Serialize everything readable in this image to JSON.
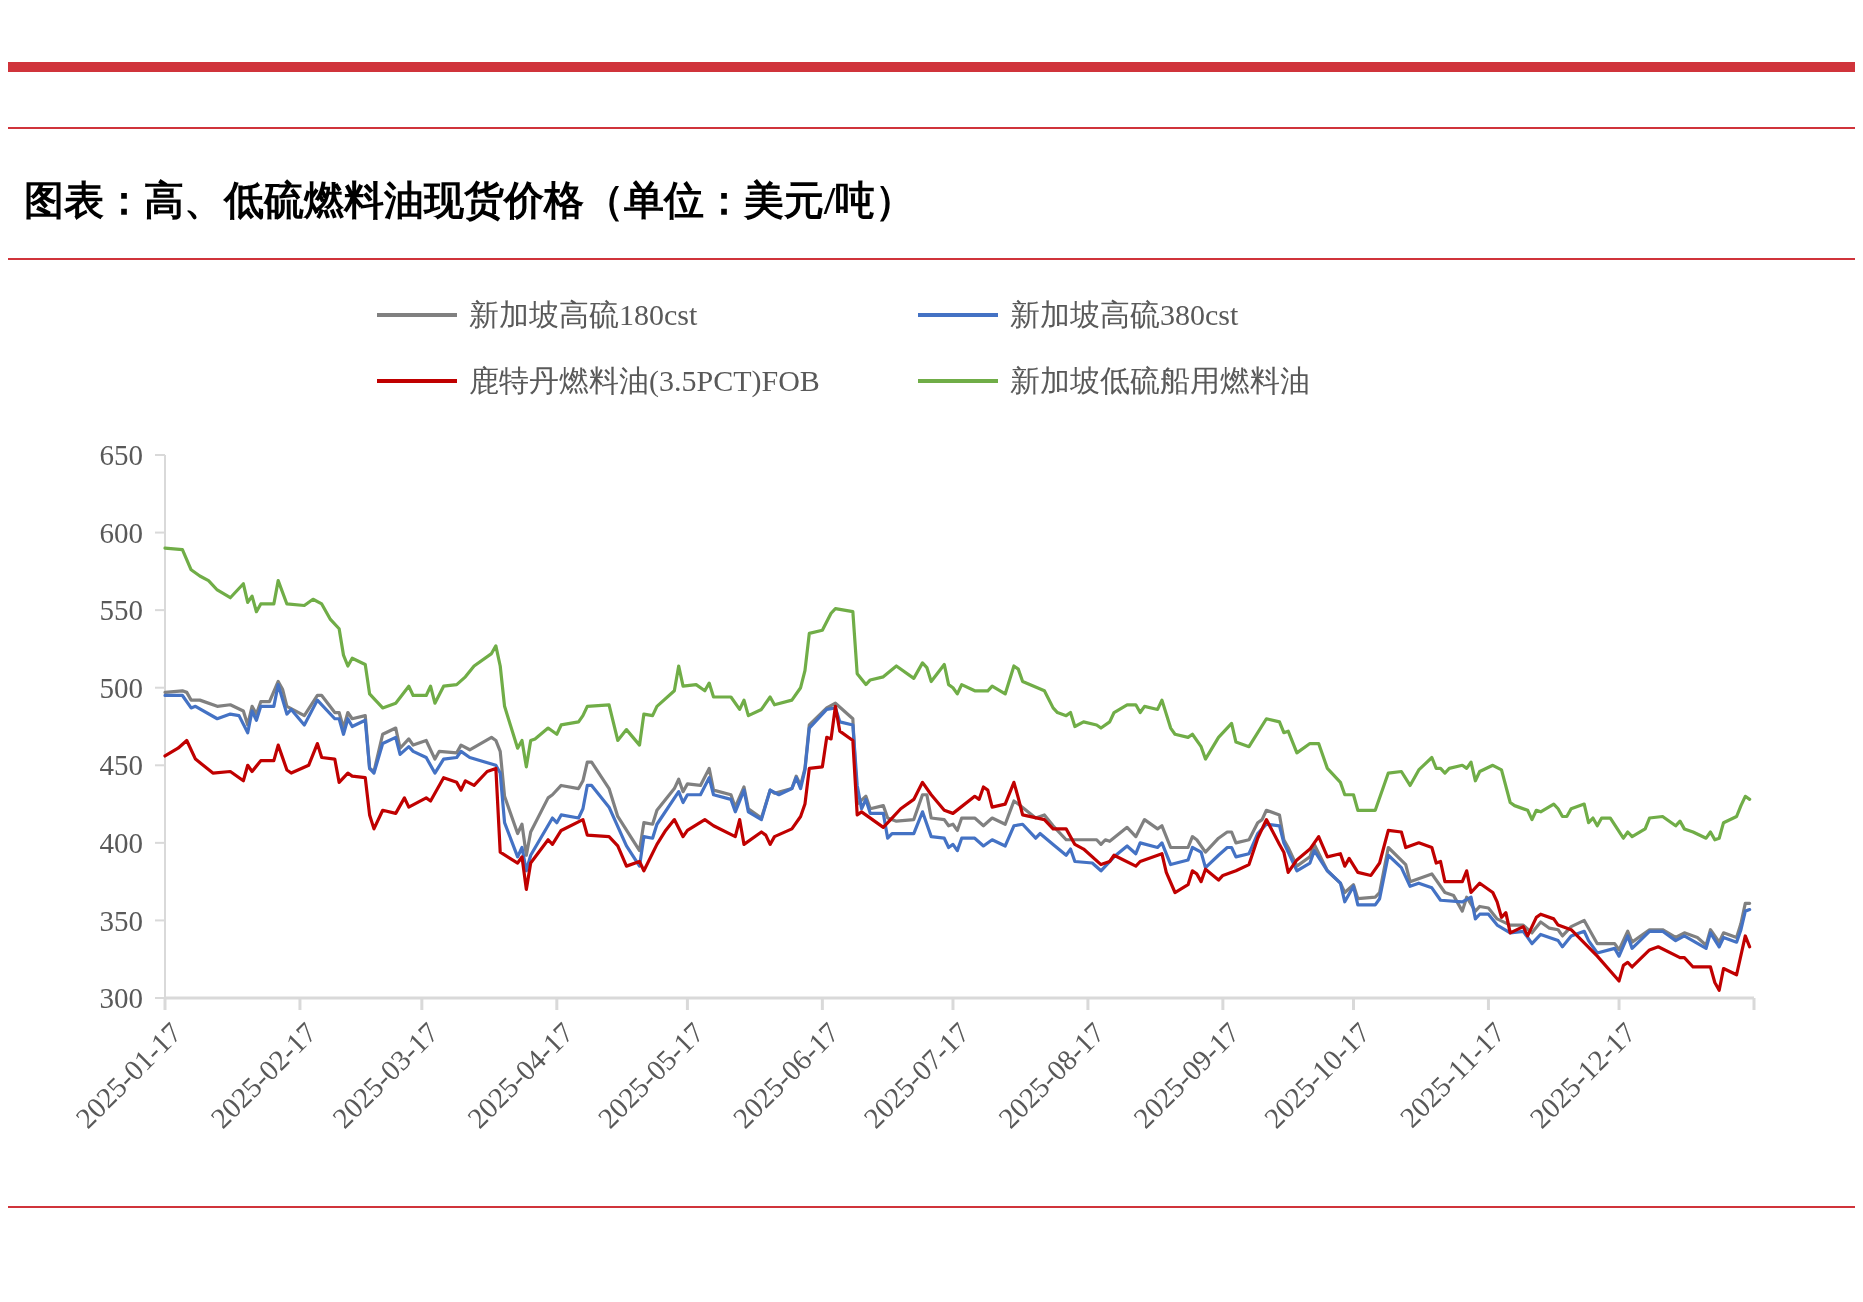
{
  "chart_data": {
    "type": "line",
    "title": "图表：高、低硫燃料油现货价格（单位：美元/吨）",
    "xlim": [
      "2025-01-17",
      "2026-01-17"
    ],
    "xticks": [
      "2025-01-17",
      "2025-02-17",
      "2025-03-17",
      "2025-04-17",
      "2025-05-17",
      "2025-06-17",
      "2025-07-17",
      "2025-08-17",
      "2025-09-17",
      "2025-10-17",
      "2025-11-17",
      "2025-12-17"
    ],
    "ylim": [
      300,
      650
    ],
    "yticks": [
      300,
      350,
      400,
      450,
      500,
      550,
      600,
      650
    ],
    "grid": false,
    "legend": "top",
    "series": [
      {
        "name": "新加坡高硫180cst",
        "color": "#808080",
        "x": [
          "2025-01-17",
          "2025-01-21",
          "2025-01-22",
          "2025-01-23",
          "2025-01-25",
          "2025-01-29",
          "2025-02-01",
          "2025-02-04",
          "2025-02-05",
          "2025-02-06",
          "2025-02-07",
          "2025-02-08",
          "2025-02-10",
          "2025-02-12",
          "2025-02-13",
          "2025-02-14",
          "2025-02-18",
          "2025-02-21",
          "2025-02-22",
          "2025-02-25",
          "2025-02-26",
          "2025-02-27",
          "2025-02-28",
          "2025-03-01",
          "2025-03-04",
          "2025-03-05",
          "2025-03-06",
          "2025-03-08",
          "2025-03-11",
          "2025-03-12",
          "2025-03-14",
          "2025-03-15",
          "2025-03-18",
          "2025-03-20",
          "2025-03-21",
          "2025-03-25",
          "2025-03-26",
          "2025-03-28",
          "2025-04-02",
          "2025-04-03",
          "2025-04-04",
          "2025-04-05",
          "2025-04-08",
          "2025-04-09",
          "2025-04-10",
          "2025-04-11",
          "2025-04-15",
          "2025-04-16",
          "2025-04-18",
          "2025-04-22",
          "2025-04-23",
          "2025-04-24",
          "2025-04-25",
          "2025-04-29",
          "2025-05-01",
          "2025-05-06",
          "2025-05-07",
          "2025-05-09",
          "2025-05-10",
          "2025-05-14",
          "2025-05-15",
          "2025-05-16",
          "2025-05-17",
          "2025-05-20",
          "2025-05-22",
          "2025-05-23",
          "2025-05-27",
          "2025-05-28",
          "2025-05-30",
          "2025-05-31",
          "2025-06-03",
          "2025-06-05",
          "2025-06-06",
          "2025-06-10",
          "2025-06-11",
          "2025-06-12",
          "2025-06-13",
          "2025-06-14",
          "2025-06-18",
          "2025-06-20",
          "2025-06-24",
          "2025-06-25",
          "2025-06-27",
          "2025-06-28",
          "2025-07-01",
          "2025-07-02",
          "2025-07-04",
          "2025-07-08",
          "2025-07-10",
          "2025-07-11",
          "2025-07-12",
          "2025-07-15",
          "2025-07-16",
          "2025-07-17",
          "2025-07-18",
          "2025-07-19",
          "2025-07-22",
          "2025-07-24",
          "2025-07-26",
          "2025-07-29",
          "2025-07-31",
          "2025-08-01",
          "2025-08-05",
          "2025-08-07",
          "2025-08-09",
          "2025-08-12",
          "2025-08-15",
          "2025-08-19",
          "2025-08-20",
          "2025-08-21",
          "2025-08-22",
          "2025-08-26",
          "2025-08-28",
          "2025-08-30",
          "2025-09-02",
          "2025-09-03",
          "2025-09-05",
          "2025-09-09",
          "2025-09-10",
          "2025-09-11",
          "2025-09-13",
          "2025-09-16",
          "2025-09-18",
          "2025-09-19",
          "2025-09-20",
          "2025-09-23",
          "2025-09-25",
          "2025-09-26",
          "2025-09-27",
          "2025-09-30",
          "2025-10-01",
          "2025-10-02",
          "2025-10-04",
          "2025-10-07",
          "2025-10-08",
          "2025-10-11",
          "2025-10-14",
          "2025-10-15",
          "2025-10-17",
          "2025-10-18",
          "2025-10-22",
          "2025-10-23",
          "2025-10-25",
          "2025-10-29",
          "2025-10-30",
          "2025-11-04",
          "2025-11-07",
          "2025-11-09",
          "2025-11-11",
          "2025-11-12",
          "2025-11-14",
          "2025-11-15",
          "2025-11-17",
          "2025-11-19",
          "2025-11-22",
          "2025-11-25",
          "2025-11-27",
          "2025-11-29",
          "2025-12-01",
          "2025-12-03",
          "2025-12-04",
          "2025-12-06",
          "2025-12-09",
          "2025-12-11",
          "2025-12-12",
          "2025-12-16",
          "2025-12-17",
          "2025-12-19",
          "2025-12-20",
          "2025-12-24",
          "2025-12-27",
          "2025-12-30",
          "2026-01-01",
          "2026-01-04",
          "2026-01-06",
          "2026-01-07",
          "2026-01-09",
          "2026-01-10",
          "2026-01-13",
          "2026-01-14",
          "2026-01-15",
          "2026-01-16"
        ],
        "values": [
          497,
          498,
          497,
          492,
          492,
          488,
          489,
          485,
          476,
          488,
          483,
          491,
          491,
          504,
          499,
          488,
          482,
          495,
          495,
          484,
          484,
          474,
          484,
          480,
          482,
          448,
          446,
          470,
          474,
          461,
          467,
          463,
          466,
          454,
          459,
          458,
          463,
          460,
          468,
          466,
          459,
          430,
          406,
          412,
          392,
          407,
          429,
          431,
          437,
          435,
          440,
          452,
          452,
          435,
          417,
          395,
          413,
          412,
          421,
          435,
          441,
          433,
          438,
          437,
          448,
          434,
          431,
          423,
          436,
          422,
          416,
          434,
          432,
          435,
          443,
          437,
          448,
          476,
          487,
          490,
          480,
          425,
          430,
          422,
          424,
          416,
          414,
          415,
          431,
          431,
          416,
          415,
          411,
          412,
          408,
          416,
          416,
          411,
          416,
          412,
          427,
          425,
          416,
          418,
          411,
          402,
          402,
          402,
          399,
          402,
          401,
          410,
          404,
          415,
          409,
          411,
          397,
          397,
          404,
          402,
          394,
          403,
          407,
          407,
          400,
          402,
          413,
          415,
          421,
          418,
          402,
          397,
          385,
          391,
          399,
          382,
          374,
          368,
          373,
          364,
          365,
          368,
          397,
          386,
          375,
          380,
          368,
          366,
          356,
          365,
          356,
          359,
          358,
          351,
          347,
          347,
          342,
          349,
          345,
          344,
          340,
          346,
          350,
          340,
          335,
          335,
          331,
          343,
          336,
          344,
          344,
          339,
          342,
          339,
          334,
          344,
          336,
          342,
          339,
          348,
          361,
          361
        ]
      },
      {
        "name": "新加坡高硫380cst",
        "color": "#4472c4",
        "x": [
          "2025-01-17",
          "2025-01-21",
          "2025-01-23",
          "2025-01-24",
          "2025-01-29",
          "2025-02-01",
          "2025-02-03",
          "2025-02-05",
          "2025-02-06",
          "2025-02-07",
          "2025-02-08",
          "2025-02-11",
          "2025-02-12",
          "2025-02-14",
          "2025-02-15",
          "2025-02-18",
          "2025-02-21",
          "2025-02-25",
          "2025-02-26",
          "2025-02-27",
          "2025-02-28",
          "2025-03-01",
          "2025-03-04",
          "2025-03-05",
          "2025-03-06",
          "2025-03-08",
          "2025-03-11",
          "2025-03-12",
          "2025-03-14",
          "2025-03-15",
          "2025-03-18",
          "2025-03-20",
          "2025-03-22",
          "2025-03-25",
          "2025-03-26",
          "2025-03-28",
          "2025-04-03",
          "2025-04-04",
          "2025-04-05",
          "2025-04-08",
          "2025-04-09",
          "2025-04-10",
          "2025-04-11",
          "2025-04-16",
          "2025-04-17",
          "2025-04-18",
          "2025-04-22",
          "2025-04-23",
          "2025-04-24",
          "2025-04-25",
          "2025-04-29",
          "2025-05-03",
          "2025-05-06",
          "2025-05-07",
          "2025-05-09",
          "2025-05-10",
          "2025-05-15",
          "2025-05-16",
          "2025-05-17",
          "2025-05-20",
          "2025-05-22",
          "2025-05-23",
          "2025-05-27",
          "2025-05-28",
          "2025-05-30",
          "2025-05-31",
          "2025-06-03",
          "2025-06-05",
          "2025-06-07",
          "2025-06-10",
          "2025-06-11",
          "2025-06-12",
          "2025-06-13",
          "2025-06-14",
          "2025-06-18",
          "2025-06-20",
          "2025-06-21",
          "2025-06-24",
          "2025-06-25",
          "2025-06-26",
          "2025-06-27",
          "2025-06-28",
          "2025-07-01",
          "2025-07-02",
          "2025-07-03",
          "2025-07-08",
          "2025-07-10",
          "2025-07-12",
          "2025-07-15",
          "2025-07-16",
          "2025-07-17",
          "2025-07-18",
          "2025-07-19",
          "2025-07-22",
          "2025-07-24",
          "2025-07-26",
          "2025-07-29",
          "2025-07-31",
          "2025-08-02",
          "2025-08-05",
          "2025-08-06",
          "2025-08-09",
          "2025-08-12",
          "2025-08-13",
          "2025-08-14",
          "2025-08-18",
          "2025-08-20",
          "2025-08-23",
          "2025-08-26",
          "2025-08-28",
          "2025-08-29",
          "2025-09-02",
          "2025-09-03",
          "2025-09-05",
          "2025-09-09",
          "2025-09-10",
          "2025-09-12",
          "2025-09-13",
          "2025-09-16",
          "2025-09-18",
          "2025-09-19",
          "2025-09-20",
          "2025-09-23",
          "2025-09-25",
          "2025-09-27",
          "2025-09-30",
          "2025-10-01",
          "2025-10-02",
          "2025-10-04",
          "2025-10-07",
          "2025-10-08",
          "2025-10-11",
          "2025-10-14",
          "2025-10-15",
          "2025-10-17",
          "2025-10-18",
          "2025-10-22",
          "2025-10-23",
          "2025-10-25",
          "2025-10-28",
          "2025-10-30",
          "2025-11-01",
          "2025-11-04",
          "2025-11-06",
          "2025-11-11",
          "2025-11-13",
          "2025-11-14",
          "2025-11-15",
          "2025-11-17",
          "2025-11-19",
          "2025-11-22",
          "2025-11-25",
          "2025-11-27",
          "2025-11-29",
          "2025-12-03",
          "2025-12-04",
          "2025-12-06",
          "2025-12-09",
          "2025-12-10",
          "2025-12-12",
          "2025-12-16",
          "2025-12-17",
          "2025-12-19",
          "2025-12-20",
          "2025-12-24",
          "2025-12-27",
          "2025-12-30",
          "2026-01-01",
          "2026-01-06",
          "2026-01-07",
          "2026-01-09",
          "2026-01-10",
          "2026-01-13",
          "2026-01-14",
          "2026-01-15",
          "2026-01-16"
        ],
        "values": [
          495,
          495,
          487,
          488,
          480,
          483,
          482,
          471,
          485,
          479,
          488,
          488,
          502,
          483,
          486,
          476,
          492,
          480,
          480,
          470,
          480,
          475,
          479,
          448,
          445,
          464,
          468,
          457,
          462,
          459,
          455,
          445,
          454,
          455,
          459,
          455,
          450,
          445,
          413,
          391,
          397,
          382,
          392,
          416,
          413,
          418,
          416,
          422,
          437,
          437,
          423,
          398,
          385,
          404,
          403,
          412,
          433,
          426,
          431,
          431,
          442,
          431,
          428,
          420,
          434,
          420,
          415,
          434,
          431,
          435,
          442,
          435,
          447,
          474,
          486,
          487,
          478,
          476,
          437,
          422,
          428,
          419,
          419,
          403,
          406,
          406,
          420,
          404,
          403,
          397,
          399,
          395,
          403,
          403,
          398,
          402,
          398,
          411,
          412,
          403,
          406,
          399,
          392,
          396,
          388,
          387,
          382,
          391,
          398,
          393,
          400,
          397,
          400,
          386,
          389,
          397,
          394,
          384,
          392,
          397,
          397,
          391,
          393,
          406,
          412,
          411,
          400,
          394,
          382,
          387,
          395,
          382,
          374,
          362,
          372,
          360,
          360,
          364,
          392,
          384,
          372,
          374,
          371,
          363,
          362,
          365,
          351,
          354,
          354,
          347,
          342,
          343,
          335,
          341,
          337,
          333,
          340,
          343,
          337,
          329,
          332,
          327,
          340,
          332,
          343,
          343,
          337,
          340,
          332,
          342,
          333,
          339,
          336,
          344,
          356,
          357
        ]
      },
      {
        "name": "鹿特丹燃料油(3.5PCT)FOB",
        "color": "#c00000",
        "x": [
          "2025-01-17",
          "2025-01-20",
          "2025-01-22",
          "2025-01-24",
          "2025-01-28",
          "2025-02-01",
          "2025-02-04",
          "2025-02-05",
          "2025-02-06",
          "2025-02-08",
          "2025-02-11",
          "2025-02-12",
          "2025-02-14",
          "2025-02-15",
          "2025-02-19",
          "2025-02-21",
          "2025-02-22",
          "2025-02-25",
          "2025-02-26",
          "2025-02-28",
          "2025-03-01",
          "2025-03-04",
          "2025-03-05",
          "2025-03-06",
          "2025-03-08",
          "2025-03-11",
          "2025-03-13",
          "2025-03-14",
          "2025-03-18",
          "2025-03-19",
          "2025-03-22",
          "2025-03-25",
          "2025-03-26",
          "2025-03-27",
          "2025-03-29",
          "2025-04-01",
          "2025-04-03",
          "2025-04-04",
          "2025-04-08",
          "2025-04-09",
          "2025-04-10",
          "2025-04-11",
          "2025-04-15",
          "2025-04-16",
          "2025-04-18",
          "2025-04-23",
          "2025-04-24",
          "2025-04-29",
          "2025-05-01",
          "2025-05-03",
          "2025-05-06",
          "2025-05-07",
          "2025-05-10",
          "2025-05-12",
          "2025-05-14",
          "2025-05-16",
          "2025-05-17",
          "2025-05-21",
          "2025-05-23",
          "2025-05-28",
          "2025-05-29",
          "2025-05-30",
          "2025-06-03",
          "2025-06-04",
          "2025-06-05",
          "2025-06-06",
          "2025-06-10",
          "2025-06-12",
          "2025-06-13",
          "2025-06-14",
          "2025-06-17",
          "2025-06-18",
          "2025-06-19",
          "2025-06-20",
          "2025-06-21",
          "2025-06-24",
          "2025-06-25",
          "2025-06-26",
          "2025-07-01",
          "2025-07-03",
          "2025-07-05",
          "2025-07-08",
          "2025-07-10",
          "2025-07-12",
          "2025-07-15",
          "2025-07-17",
          "2025-07-22",
          "2025-07-23",
          "2025-07-24",
          "2025-07-25",
          "2025-07-26",
          "2025-07-29",
          "2025-07-31",
          "2025-08-01",
          "2025-08-02",
          "2025-08-07",
          "2025-08-09",
          "2025-08-12",
          "2025-08-14",
          "2025-08-16",
          "2025-08-20",
          "2025-08-22",
          "2025-08-23",
          "2025-08-28",
          "2025-08-29",
          "2025-09-03",
          "2025-09-04",
          "2025-09-06",
          "2025-09-09",
          "2025-09-10",
          "2025-09-11",
          "2025-09-12",
          "2025-09-13",
          "2025-09-16",
          "2025-09-17",
          "2025-09-20",
          "2025-09-23",
          "2025-09-25",
          "2025-09-27",
          "2025-09-30",
          "2025-10-01",
          "2025-10-02",
          "2025-10-04",
          "2025-10-07",
          "2025-10-09",
          "2025-10-11",
          "2025-10-14",
          "2025-10-15",
          "2025-10-16",
          "2025-10-18",
          "2025-10-21",
          "2025-10-23",
          "2025-10-25",
          "2025-10-28",
          "2025-10-29",
          "2025-11-01",
          "2025-11-04",
          "2025-11-05",
          "2025-11-06",
          "2025-11-07",
          "2025-11-11",
          "2025-11-12",
          "2025-11-13",
          "2025-11-15",
          "2025-11-18",
          "2025-11-19",
          "2025-11-20",
          "2025-11-21",
          "2025-11-22",
          "2025-11-25",
          "2025-11-26",
          "2025-11-28",
          "2025-11-29",
          "2025-12-02",
          "2025-12-03",
          "2025-12-06",
          "2025-12-12",
          "2025-12-17",
          "2025-12-18",
          "2025-12-19",
          "2025-12-20",
          "2025-12-24",
          "2025-12-26",
          "2025-12-31",
          "2026-01-01",
          "2026-01-03",
          "2026-01-07",
          "2026-01-08",
          "2026-01-09",
          "2026-01-10",
          "2026-01-13",
          "2026-01-15",
          "2026-01-16"
        ],
        "values": [
          456,
          461,
          466,
          454,
          445,
          446,
          440,
          450,
          446,
          453,
          453,
          463,
          447,
          445,
          450,
          464,
          455,
          454,
          439,
          445,
          443,
          442,
          418,
          409,
          421,
          419,
          429,
          423,
          429,
          427,
          442,
          439,
          434,
          440,
          437,
          446,
          448,
          394,
          387,
          391,
          370,
          387,
          402,
          399,
          408,
          415,
          405,
          404,
          398,
          385,
          388,
          382,
          399,
          408,
          415,
          404,
          408,
          415,
          411,
          404,
          415,
          399,
          407,
          405,
          399,
          404,
          409,
          417,
          425,
          448,
          449,
          468,
          467,
          488,
          472,
          466,
          418,
          420,
          410,
          416,
          422,
          428,
          439,
          431,
          421,
          419,
          430,
          428,
          436,
          434,
          423,
          425,
          439,
          429,
          418,
          415,
          409,
          409,
          399,
          396,
          386,
          388,
          392,
          385,
          388,
          393,
          381,
          368,
          373,
          382,
          380,
          375,
          383,
          376,
          379,
          382,
          386,
          403,
          415,
          399,
          394,
          381,
          389,
          396,
          404,
          391,
          393,
          385,
          390,
          381,
          379,
          387,
          408,
          407,
          397,
          400,
          397,
          387,
          388,
          375,
          375,
          382,
          368,
          374,
          368,
          362,
          352,
          355,
          342,
          346,
          340,
          352,
          354,
          351,
          347,
          344,
          327,
          311,
          321,
          323,
          320,
          331,
          333,
          326,
          326,
          320,
          320,
          310,
          305,
          319,
          315,
          340,
          333
        ]
      },
      {
        "name": "新加坡低硫船用燃料油",
        "color": "#70ad47",
        "x": [
          "2025-01-17",
          "2025-01-21",
          "2025-01-23",
          "2025-01-25",
          "2025-01-27",
          "2025-01-29",
          "2025-02-01",
          "2025-02-04",
          "2025-02-05",
          "2025-02-06",
          "2025-02-07",
          "2025-02-08",
          "2025-02-11",
          "2025-02-12",
          "2025-02-14",
          "2025-02-18",
          "2025-02-20",
          "2025-02-22",
          "2025-02-24",
          "2025-02-26",
          "2025-02-27",
          "2025-02-28",
          "2025-03-01",
          "2025-03-04",
          "2025-03-05",
          "2025-03-06",
          "2025-03-08",
          "2025-03-11",
          "2025-03-14",
          "2025-03-15",
          "2025-03-18",
          "2025-03-19",
          "2025-03-20",
          "2025-03-22",
          "2025-03-25",
          "2025-03-27",
          "2025-03-29",
          "2025-04-02",
          "2025-04-03",
          "2025-04-04",
          "2025-04-05",
          "2025-04-08",
          "2025-04-09",
          "2025-04-10",
          "2025-04-11",
          "2025-04-12",
          "2025-04-15",
          "2025-04-17",
          "2025-04-18",
          "2025-04-22",
          "2025-04-23",
          "2025-04-24",
          "2025-04-29",
          "2025-05-01",
          "2025-05-03",
          "2025-05-06",
          "2025-05-07",
          "2025-05-09",
          "2025-05-10",
          "2025-05-14",
          "2025-05-15",
          "2025-05-16",
          "2025-05-19",
          "2025-05-21",
          "2025-05-22",
          "2025-05-23",
          "2025-05-27",
          "2025-05-29",
          "2025-05-30",
          "2025-05-31",
          "2025-06-03",
          "2025-06-05",
          "2025-06-06",
          "2025-06-10",
          "2025-06-12",
          "2025-06-13",
          "2025-06-14",
          "2025-06-17",
          "2025-06-19",
          "2025-06-20",
          "2025-06-24",
          "2025-06-25",
          "2025-06-27",
          "2025-06-28",
          "2025-07-01",
          "2025-07-04",
          "2025-07-08",
          "2025-07-10",
          "2025-07-11",
          "2025-07-12",
          "2025-07-15",
          "2025-07-16",
          "2025-07-17",
          "2025-07-18",
          "2025-07-19",
          "2025-07-22",
          "2025-07-25",
          "2025-07-26",
          "2025-07-29",
          "2025-07-31",
          "2025-08-01",
          "2025-08-02",
          "2025-08-07",
          "2025-08-09",
          "2025-08-10",
          "2025-08-12",
          "2025-08-13",
          "2025-08-14",
          "2025-08-16",
          "2025-08-19",
          "2025-08-20",
          "2025-08-22",
          "2025-08-23",
          "2025-08-26",
          "2025-08-28",
          "2025-08-29",
          "2025-08-30",
          "2025-09-02",
          "2025-09-03",
          "2025-09-05",
          "2025-09-06",
          "2025-09-09",
          "2025-09-10",
          "2025-09-12",
          "2025-09-13",
          "2025-09-16",
          "2025-09-19",
          "2025-09-20",
          "2025-09-23",
          "2025-09-27",
          "2025-09-30",
          "2025-10-01",
          "2025-10-02",
          "2025-10-04",
          "2025-10-07",
          "2025-10-09",
          "2025-10-11",
          "2025-10-14",
          "2025-10-15",
          "2025-10-17",
          "2025-10-18",
          "2025-10-22",
          "2025-10-25",
          "2025-10-28",
          "2025-10-30",
          "2025-11-01",
          "2025-11-04",
          "2025-11-05",
          "2025-11-06",
          "2025-11-07",
          "2025-11-08",
          "2025-11-11",
          "2025-11-12",
          "2025-11-13",
          "2025-11-14",
          "2025-11-15",
          "2025-11-18",
          "2025-11-20",
          "2025-11-22",
          "2025-11-23",
          "2025-11-26",
          "2025-11-27",
          "2025-11-28",
          "2025-11-29",
          "2025-12-02",
          "2025-12-03",
          "2025-12-04",
          "2025-12-05",
          "2025-12-06",
          "2025-12-09",
          "2025-12-10",
          "2025-12-11",
          "2025-12-12",
          "2025-12-13",
          "2025-12-15",
          "2025-12-18",
          "2025-12-19",
          "2025-12-20",
          "2025-12-23",
          "2025-12-24",
          "2025-12-27",
          "2025-12-30",
          "2025-12-31",
          "2026-01-01",
          "2026-01-03",
          "2026-01-06",
          "2026-01-07",
          "2026-01-08",
          "2026-01-09",
          "2026-01-10",
          "2026-01-13",
          "2026-01-14",
          "2026-01-15",
          "2026-01-16"
        ],
        "values": [
          590,
          589,
          576,
          572,
          569,
          563,
          558,
          567,
          555,
          559,
          549,
          554,
          554,
          569,
          554,
          553,
          557,
          554,
          544,
          538,
          521,
          514,
          519,
          515,
          496,
          493,
          487,
          490,
          501,
          495,
          495,
          501,
          490,
          501,
          502,
          507,
          514,
          522,
          527,
          514,
          488,
          461,
          466,
          449,
          466,
          467,
          474,
          470,
          476,
          478,
          482,
          488,
          489,
          466,
          473,
          463,
          483,
          482,
          488,
          498,
          514,
          501,
          502,
          498,
          503,
          494,
          494,
          486,
          492,
          482,
          486,
          494,
          489,
          492,
          500,
          511,
          535,
          537,
          548,
          551,
          549,
          509,
          502,
          505,
          507,
          514,
          506,
          516,
          513,
          504,
          515,
          502,
          500,
          496,
          502,
          498,
          498,
          501,
          496,
          514,
          512,
          504,
          498,
          487,
          484,
          482,
          484,
          475,
          478,
          476,
          474,
          478,
          484,
          489,
          489,
          484,
          488,
          486,
          492,
          474,
          470,
          468,
          470,
          462,
          454,
          468,
          477,
          465,
          462,
          480,
          478,
          471,
          472,
          458,
          464,
          464,
          448,
          439,
          431,
          431,
          421,
          421,
          445,
          446,
          437,
          447,
          455,
          448,
          448,
          445,
          448,
          450,
          448,
          452,
          440,
          446,
          450,
          447,
          426,
          424,
          421,
          415,
          421,
          420,
          425,
          422,
          417,
          417,
          422,
          425,
          413,
          416,
          411,
          416,
          416,
          403,
          407,
          404,
          409,
          416,
          417,
          411,
          414,
          409,
          407,
          403,
          407,
          402,
          403,
          413,
          417,
          424,
          430,
          428
        ]
      }
    ]
  }
}
